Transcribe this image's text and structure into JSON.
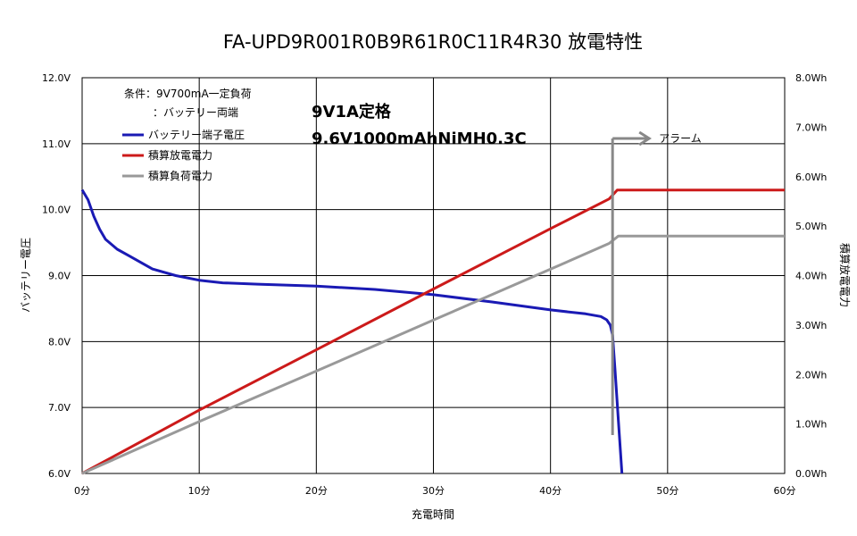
{
  "chart_data": {
    "type": "line",
    "title": "FA-UPD9R001R0B9R61R0C11R4R30 放電特性",
    "xlabel": "充電時間",
    "ylabel_left": "バッテリー電圧",
    "ylabel_right": "積算放電電力",
    "xlim": [
      0,
      60
    ],
    "ylim_left": [
      6.0,
      12.0
    ],
    "ylim_right": [
      0.0,
      8.0
    ],
    "grid": true,
    "legend_position": "top-left",
    "x_ticks": [
      "0分",
      "10分",
      "20分",
      "30分",
      "40分",
      "50分",
      "60分"
    ],
    "y_ticks_left": [
      "6.0V",
      "7.0V",
      "8.0V",
      "9.0V",
      "10.0V",
      "11.0V",
      "12.0V"
    ],
    "y_ticks_right": [
      "0.0Wh",
      "1.0Wh",
      "2.0Wh",
      "3.0Wh",
      "4.0Wh",
      "5.0Wh",
      "6.0Wh",
      "7.0Wh",
      "8.0Wh"
    ],
    "conditions": [
      "条件：9V700mA一定負荷",
      "：バッテリー両端"
    ],
    "annotations": [
      "9V1A定格",
      "9.6V1000mAhNiMH0.3C"
    ],
    "alarm_label": "アラーム",
    "alarm_x": 45.3,
    "series": [
      {
        "name": "バッテリー端子電圧",
        "axis": "left",
        "color": "#1a1ab4",
        "points": [
          [
            0,
            10.3
          ],
          [
            0.5,
            10.15
          ],
          [
            1,
            9.9
          ],
          [
            1.5,
            9.7
          ],
          [
            2,
            9.55
          ],
          [
            3,
            9.4
          ],
          [
            4,
            9.3
          ],
          [
            5,
            9.2
          ],
          [
            6,
            9.1
          ],
          [
            8,
            9.0
          ],
          [
            10,
            8.93
          ],
          [
            12,
            8.89
          ],
          [
            15,
            8.87
          ],
          [
            20,
            8.84
          ],
          [
            25,
            8.79
          ],
          [
            30,
            8.71
          ],
          [
            35,
            8.6
          ],
          [
            40,
            8.48
          ],
          [
            43,
            8.42
          ],
          [
            44.3,
            8.38
          ],
          [
            44.8,
            8.33
          ],
          [
            45.1,
            8.25
          ],
          [
            45.3,
            8.1
          ],
          [
            45.5,
            7.6
          ],
          [
            45.8,
            6.8
          ],
          [
            46.1,
            6.0
          ]
        ]
      },
      {
        "name": "積算放電電力",
        "axis": "right",
        "color": "#cc1a1a",
        "points": [
          [
            0,
            0.0
          ],
          [
            10,
            1.28
          ],
          [
            20,
            2.5
          ],
          [
            30,
            3.73
          ],
          [
            40,
            4.95
          ],
          [
            45,
            5.55
          ],
          [
            45.7,
            5.73
          ],
          [
            60,
            5.73
          ]
        ]
      },
      {
        "name": "積算負荷電力",
        "axis": "right",
        "color": "#999999",
        "points": [
          [
            0,
            0.0
          ],
          [
            10,
            1.05
          ],
          [
            20,
            2.07
          ],
          [
            30,
            3.1
          ],
          [
            40,
            4.13
          ],
          [
            45,
            4.65
          ],
          [
            45.8,
            4.8
          ],
          [
            60,
            4.8
          ]
        ]
      }
    ]
  }
}
